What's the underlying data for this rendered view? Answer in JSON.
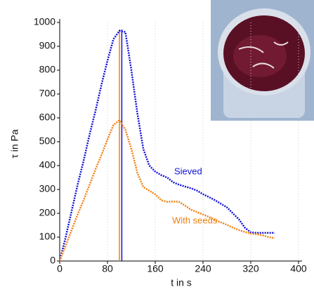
{
  "chart_data": {
    "type": "line",
    "xlabel": "t in s",
    "ylabel": "τ in Pa",
    "x": [
      0,
      10,
      20,
      30,
      40,
      50,
      60,
      70,
      80,
      90,
      100,
      110,
      120,
      130,
      140,
      150,
      160,
      170,
      180,
      190,
      200,
      210,
      220,
      230,
      240,
      250,
      260,
      270,
      280,
      290,
      300,
      310,
      320,
      330,
      340,
      350,
      360
    ],
    "series": [
      {
        "name": "Sieved",
        "color": "#1010d8",
        "values": [
          0,
          100,
          210,
          320,
          420,
          530,
          630,
          740,
          840,
          930,
          965,
          960,
          800,
          620,
          470,
          400,
          375,
          360,
          350,
          330,
          320,
          312,
          305,
          295,
          280,
          268,
          255,
          240,
          225,
          200,
          175,
          140,
          120,
          118,
          118,
          118,
          118
        ]
      },
      {
        "name": "With seeds",
        "color": "#f08010",
        "values": [
          0,
          65,
          130,
          195,
          255,
          320,
          385,
          445,
          510,
          570,
          590,
          550,
          470,
          370,
          310,
          295,
          280,
          255,
          248,
          250,
          248,
          232,
          215,
          205,
          195,
          185,
          172,
          162,
          152,
          140,
          130,
          122,
          115,
          112,
          108,
          100,
          96
        ]
      }
    ],
    "vlines": [
      {
        "x": 100,
        "color": "#f08010"
      },
      {
        "x": 104,
        "color": "#1010d8"
      }
    ],
    "xlim": [
      0,
      400
    ],
    "xticks": [
      0,
      80,
      160,
      240,
      320,
      400
    ],
    "ylim": [
      0,
      1000
    ],
    "yticks": [
      0,
      100,
      200,
      300,
      400,
      500,
      600,
      700,
      800,
      900,
      1000
    ],
    "grid": "x"
  }
}
